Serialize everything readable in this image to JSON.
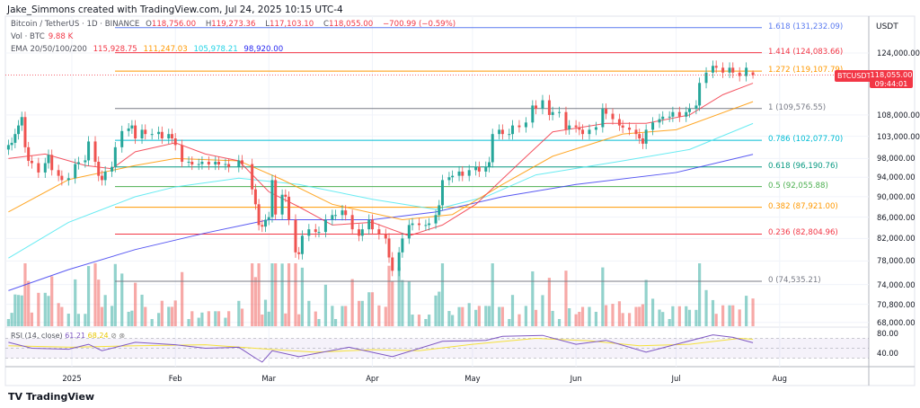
{
  "credit": "Jake_Simmons created with TradingView.com, Jul 24, 2025 10:15 UTC-4",
  "legend": {
    "symbol": "Bitcoin / TetherUS · 1D · BINANCE",
    "open_label": "O",
    "open": "118,756.00",
    "high_label": "H",
    "high": "119,273.36",
    "low_label": "L",
    "low": "117,103.10",
    "close_label": "C",
    "close": "118,055.00",
    "change": "−700.99 (−0.59%)",
    "vol_label": "Vol · BTC",
    "vol": "9.88 K",
    "ema_label": "EMA 20/50/100/200",
    "ema20": "115,928.75",
    "ema50": "111,247.03",
    "ema100": "105,978.21",
    "ema200": "98,920.00"
  },
  "price_axis": {
    "currency": "USDT",
    "ticks": [
      "124,000.00",
      "108,000.00",
      "103,000.00",
      "98,000.00",
      "94,000.00",
      "90,000.00",
      "86,000.00",
      "82,000.00",
      "78,000.00",
      "74,000.00",
      "70,800.00",
      "68,000.00"
    ],
    "tick_values": [
      124000,
      108000,
      103000,
      98000,
      94000,
      90000,
      86000,
      82000,
      78000,
      74000,
      70800,
      68000
    ],
    "scale": "log",
    "current_price": "118,055.00",
    "countdown": "09:44:01",
    "symbol_tag": "BTCUSDT"
  },
  "rsi": {
    "label": "RSI (14, close)",
    "value": "61.21",
    "ma_value": "68.24",
    "ticks": [
      "80.00",
      "40.00"
    ],
    "tick_values": [
      80,
      40
    ],
    "line_color": "#7e57c2",
    "ma_color": "#f5e13b"
  },
  "time_axis": [
    {
      "label": "2025",
      "date": "2025-01-01"
    },
    {
      "label": "Feb",
      "date": "2025-02-01"
    },
    {
      "label": "Mar",
      "date": "2025-03-01"
    },
    {
      "label": "Apr",
      "date": "2025-04-01"
    },
    {
      "label": "May",
      "date": "2025-05-01"
    },
    {
      "label": "Jun",
      "date": "2025-06-01"
    },
    {
      "label": "Jul",
      "date": "2025-07-01"
    },
    {
      "label": "Aug",
      "date": "2025-08-01"
    }
  ],
  "fib_levels": [
    {
      "label": "1.618 (131,232.09)",
      "price": 131232.09,
      "color": "#5b7bf0"
    },
    {
      "label": "1.414 (124,083.66)",
      "price": 124083.66,
      "color": "#f23645"
    },
    {
      "label": "1.272 (119,107.79)",
      "price": 119107.79,
      "color": "#ff9800"
    },
    {
      "label": "1 (109,576.55)",
      "price": 109576.55,
      "color": "#787b86"
    },
    {
      "label": "0.786 (102,077.70)",
      "price": 102077.7,
      "color": "#00bcd4"
    },
    {
      "label": "0.618 (96,190.76)",
      "price": 96190.76,
      "color": "#089981"
    },
    {
      "label": "0.5 (92,055.88)",
      "price": 92055.88,
      "color": "#4caf50"
    },
    {
      "label": "0.382 (87,921.00)",
      "price": 87921.0,
      "color": "#ff9800"
    },
    {
      "label": "0.236 (82,804.96)",
      "price": 82804.96,
      "color": "#f23645"
    },
    {
      "label": "0 (74,535.21)",
      "price": 74535.21,
      "color": "#787b86"
    }
  ],
  "colors": {
    "up": "#26a69a",
    "down": "#ef5350",
    "ema20": "#f23645",
    "ema50": "#ff9800",
    "ema100": "#4de8f0",
    "ema200": "#3c3cf0"
  },
  "logo": "TradingView",
  "chart_data": {
    "type": "candlestick",
    "symbol": "BTCUSDT",
    "y_scale": "log",
    "ylim": [
      68000,
      131232
    ],
    "closes": [
      [
        "2024-12-13",
        101000
      ],
      [
        "2024-12-14",
        101500
      ],
      [
        "2024-12-15",
        103500
      ],
      [
        "2024-12-16",
        105500
      ],
      [
        "2024-12-17",
        107500
      ],
      [
        "2024-12-18",
        100500
      ],
      [
        "2024-12-19",
        97500
      ],
      [
        "2024-12-20",
        97000
      ],
      [
        "2024-12-22",
        95000
      ],
      [
        "2024-12-24",
        97000
      ],
      [
        "2024-12-25",
        98800
      ],
      [
        "2024-12-26",
        95500
      ],
      [
        "2024-12-28",
        94300
      ],
      [
        "2024-12-29",
        93400
      ],
      [
        "2024-12-31",
        93800
      ],
      [
        "2025-01-02",
        96800
      ],
      [
        "2025-01-03",
        97200
      ],
      [
        "2025-01-05",
        97600
      ],
      [
        "2025-01-06",
        101800
      ],
      [
        "2025-01-08",
        97300
      ],
      [
        "2025-01-09",
        94300
      ],
      [
        "2025-01-10",
        93400
      ],
      [
        "2025-01-11",
        95200
      ],
      [
        "2025-01-13",
        96200
      ],
      [
        "2025-01-14",
        100500
      ],
      [
        "2025-01-16",
        104200
      ],
      [
        "2025-01-18",
        104800
      ],
      [
        "2025-01-19",
        105500
      ],
      [
        "2025-01-20",
        102500
      ],
      [
        "2025-01-22",
        104500
      ],
      [
        "2025-01-23",
        103500
      ],
      [
        "2025-01-25",
        103500
      ],
      [
        "2025-01-27",
        104000
      ],
      [
        "2025-01-28",
        102500
      ],
      [
        "2025-01-30",
        103500
      ],
      [
        "2025-01-31",
        102500
      ],
      [
        "2025-02-01",
        101000
      ],
      [
        "2025-02-03",
        97300
      ],
      [
        "2025-02-05",
        97300
      ],
      [
        "2025-02-06",
        96700
      ],
      [
        "2025-02-08",
        96800
      ],
      [
        "2025-02-09",
        97300
      ],
      [
        "2025-02-11",
        96700
      ],
      [
        "2025-02-13",
        97300
      ],
      [
        "2025-02-14",
        96700
      ],
      [
        "2025-02-16",
        96800
      ],
      [
        "2025-02-17",
        96200
      ],
      [
        "2025-02-20",
        97600
      ],
      [
        "2025-02-21",
        96800
      ],
      [
        "2025-02-24",
        91500
      ],
      [
        "2025-02-25",
        88500
      ],
      [
        "2025-02-26",
        84500
      ],
      [
        "2025-02-27",
        84200
      ],
      [
        "2025-02-28",
        85500
      ],
      [
        "2025-03-01",
        86000
      ],
      [
        "2025-03-02",
        93400
      ],
      [
        "2025-03-03",
        86500
      ],
      [
        "2025-03-05",
        90400
      ],
      [
        "2025-03-06",
        90000
      ],
      [
        "2025-03-07",
        85500
      ],
      [
        "2025-03-09",
        79500
      ],
      [
        "2025-03-10",
        79200
      ],
      [
        "2025-03-11",
        82500
      ],
      [
        "2025-03-13",
        83700
      ],
      [
        "2025-03-15",
        83200
      ],
      [
        "2025-03-16",
        83200
      ],
      [
        "2025-03-18",
        85500
      ],
      [
        "2025-03-20",
        86400
      ],
      [
        "2025-03-21",
        86400
      ],
      [
        "2025-03-23",
        87300
      ],
      [
        "2025-03-24",
        86400
      ],
      [
        "2025-03-26",
        83700
      ],
      [
        "2025-03-28",
        82500
      ],
      [
        "2025-03-29",
        83700
      ],
      [
        "2025-03-31",
        85500
      ],
      [
        "2025-04-01",
        83700
      ],
      [
        "2025-04-03",
        82800
      ],
      [
        "2025-04-05",
        82000
      ],
      [
        "2025-04-06",
        78600
      ],
      [
        "2025-04-07",
        76300
      ],
      [
        "2025-04-09",
        79500
      ],
      [
        "2025-04-10",
        82000
      ],
      [
        "2025-04-12",
        84500
      ],
      [
        "2025-04-13",
        84800
      ],
      [
        "2025-04-15",
        84500
      ],
      [
        "2025-04-17",
        84500
      ],
      [
        "2025-04-18",
        84800
      ],
      [
        "2025-04-20",
        86400
      ],
      [
        "2025-04-21",
        88300
      ],
      [
        "2025-04-22",
        93400
      ],
      [
        "2025-04-24",
        94000
      ],
      [
        "2025-04-25",
        94300
      ],
      [
        "2025-04-27",
        95200
      ],
      [
        "2025-04-28",
        94300
      ],
      [
        "2025-04-30",
        95500
      ],
      [
        "2025-05-02",
        96200
      ],
      [
        "2025-05-03",
        95200
      ],
      [
        "2025-05-05",
        96200
      ],
      [
        "2025-05-06",
        97200
      ],
      [
        "2025-05-07",
        103500
      ],
      [
        "2025-05-09",
        104500
      ],
      [
        "2025-05-10",
        103500
      ],
      [
        "2025-05-12",
        103500
      ],
      [
        "2025-05-13",
        105500
      ],
      [
        "2025-05-15",
        105100
      ],
      [
        "2025-05-17",
        106200
      ],
      [
        "2025-05-19",
        110300
      ],
      [
        "2025-05-20",
        109500
      ],
      [
        "2025-05-22",
        111600
      ],
      [
        "2025-05-24",
        108000
      ],
      [
        "2025-05-25",
        108700
      ],
      [
        "2025-05-27",
        108700
      ],
      [
        "2025-05-29",
        104600
      ],
      [
        "2025-05-30",
        105500
      ],
      [
        "2025-06-01",
        105100
      ],
      [
        "2025-06-02",
        104500
      ],
      [
        "2025-06-03",
        103500
      ],
      [
        "2025-06-05",
        104500
      ],
      [
        "2025-06-07",
        105100
      ],
      [
        "2025-06-09",
        109500
      ],
      [
        "2025-06-10",
        108300
      ],
      [
        "2025-06-12",
        107000
      ],
      [
        "2025-06-14",
        105500
      ],
      [
        "2025-06-15",
        105000
      ],
      [
        "2025-06-17",
        104500
      ],
      [
        "2025-06-19",
        103500
      ],
      [
        "2025-06-20",
        102500
      ],
      [
        "2025-06-21",
        101300
      ],
      [
        "2025-06-22",
        104500
      ],
      [
        "2025-06-24",
        106200
      ],
      [
        "2025-06-26",
        107000
      ],
      [
        "2025-06-27",
        107600
      ],
      [
        "2025-06-29",
        107600
      ],
      [
        "2025-06-30",
        108700
      ],
      [
        "2025-07-02",
        107600
      ],
      [
        "2025-07-04",
        108700
      ],
      [
        "2025-07-05",
        109500
      ],
      [
        "2025-07-07",
        110300
      ],
      [
        "2025-07-08",
        116000
      ],
      [
        "2025-07-10",
        118700
      ],
      [
        "2025-07-12",
        120500
      ],
      [
        "2025-07-13",
        120000
      ],
      [
        "2025-07-15",
        118700
      ],
      [
        "2025-07-17",
        120000
      ],
      [
        "2025-07-18",
        118700
      ],
      [
        "2025-07-20",
        117800
      ],
      [
        "2025-07-22",
        120000
      ],
      [
        "2025-07-24",
        118055
      ]
    ],
    "ema20": [
      [
        "2024-12-13",
        98000
      ],
      [
        "2024-12-24",
        99000
      ],
      [
        "2025-01-05",
        96500
      ],
      [
        "2025-01-13",
        95800
      ],
      [
        "2025-01-20",
        99500
      ],
      [
        "2025-02-01",
        101500
      ],
      [
        "2025-02-10",
        99000
      ],
      [
        "2025-02-20",
        97500
      ],
      [
        "2025-03-01",
        91000
      ],
      [
        "2025-03-10",
        88000
      ],
      [
        "2025-03-20",
        84500
      ],
      [
        "2025-04-01",
        85000
      ],
      [
        "2025-04-12",
        82500
      ],
      [
        "2025-04-22",
        84500
      ],
      [
        "2025-05-02",
        88500
      ],
      [
        "2025-05-15",
        97000
      ],
      [
        "2025-05-25",
        104000
      ],
      [
        "2025-06-10",
        106000
      ],
      [
        "2025-06-22",
        106000
      ],
      [
        "2025-07-05",
        108000
      ],
      [
        "2025-07-15",
        113000
      ],
      [
        "2025-07-24",
        115928.75
      ]
    ],
    "ema50": [
      [
        "2024-12-13",
        87000
      ],
      [
        "2024-12-31",
        93500
      ],
      [
        "2025-01-20",
        96500
      ],
      [
        "2025-02-01",
        98000
      ],
      [
        "2025-02-20",
        97500
      ],
      [
        "2025-03-05",
        93500
      ],
      [
        "2025-03-20",
        88500
      ],
      [
        "2025-04-10",
        85500
      ],
      [
        "2025-04-25",
        86500
      ],
      [
        "2025-05-10",
        92500
      ],
      [
        "2025-05-25",
        98500
      ],
      [
        "2025-06-15",
        103500
      ],
      [
        "2025-07-01",
        104500
      ],
      [
        "2025-07-24",
        111247.03
      ]
    ],
    "ema100": [
      [
        "2024-12-13",
        78500
      ],
      [
        "2024-12-31",
        85000
      ],
      [
        "2025-01-20",
        90000
      ],
      [
        "2025-02-01",
        92000
      ],
      [
        "2025-02-20",
        93800
      ],
      [
        "2025-03-10",
        92500
      ],
      [
        "2025-04-01",
        89500
      ],
      [
        "2025-04-20",
        87500
      ],
      [
        "2025-05-05",
        90000
      ],
      [
        "2025-05-20",
        94500
      ],
      [
        "2025-06-15",
        97500
      ],
      [
        "2025-07-05",
        100000
      ],
      [
        "2025-07-24",
        105978.21
      ]
    ],
    "ema200": [
      [
        "2024-12-13",
        73000
      ],
      [
        "2024-12-31",
        76500
      ],
      [
        "2025-01-20",
        80000
      ],
      [
        "2025-02-10",
        83000
      ],
      [
        "2025-03-01",
        85500
      ],
      [
        "2025-04-01",
        85500
      ],
      [
        "2025-04-20",
        87000
      ],
      [
        "2025-05-10",
        90000
      ],
      [
        "2025-06-01",
        92500
      ],
      [
        "2025-07-01",
        95000
      ],
      [
        "2025-07-24",
        98920
      ]
    ],
    "last_candle": {
      "date": "2025-07-24",
      "open": 118756.0,
      "high": 119273.36,
      "low": 117103.1,
      "close": 118055.0
    },
    "rsi_line": [
      [
        "2024-12-13",
        62
      ],
      [
        "2024-12-20",
        50
      ],
      [
        "2024-12-31",
        48
      ],
      [
        "2025-01-06",
        58
      ],
      [
        "2025-01-10",
        45
      ],
      [
        "2025-01-20",
        62
      ],
      [
        "2025-02-01",
        57
      ],
      [
        "2025-02-10",
        50
      ],
      [
        "2025-02-20",
        52
      ],
      [
        "2025-02-25",
        30
      ],
      [
        "2025-02-27",
        22
      ],
      [
        "2025-03-02",
        45
      ],
      [
        "2025-03-10",
        33
      ],
      [
        "2025-03-25",
        52
      ],
      [
        "2025-04-07",
        33
      ],
      [
        "2025-04-22",
        64
      ],
      [
        "2025-05-05",
        66
      ],
      [
        "2025-05-10",
        74
      ],
      [
        "2025-05-22",
        76
      ],
      [
        "2025-06-01",
        58
      ],
      [
        "2025-06-10",
        66
      ],
      [
        "2025-06-22",
        42
      ],
      [
        "2025-07-01",
        58
      ],
      [
        "2025-07-12",
        77
      ],
      [
        "2025-07-18",
        72
      ],
      [
        "2025-07-24",
        61.21
      ]
    ],
    "rsi_ma": [
      [
        "2024-12-13",
        55
      ],
      [
        "2025-01-01",
        52
      ],
      [
        "2025-01-20",
        55
      ],
      [
        "2025-02-10",
        57
      ],
      [
        "2025-03-01",
        48
      ],
      [
        "2025-03-15",
        42
      ],
      [
        "2025-04-01",
        47
      ],
      [
        "2025-04-15",
        45
      ],
      [
        "2025-05-01",
        58
      ],
      [
        "2025-05-20",
        70
      ],
      [
        "2025-06-05",
        65
      ],
      [
        "2025-06-20",
        55
      ],
      [
        "2025-07-05",
        58
      ],
      [
        "2025-07-20",
        70
      ],
      [
        "2025-07-24",
        68.24
      ]
    ]
  }
}
